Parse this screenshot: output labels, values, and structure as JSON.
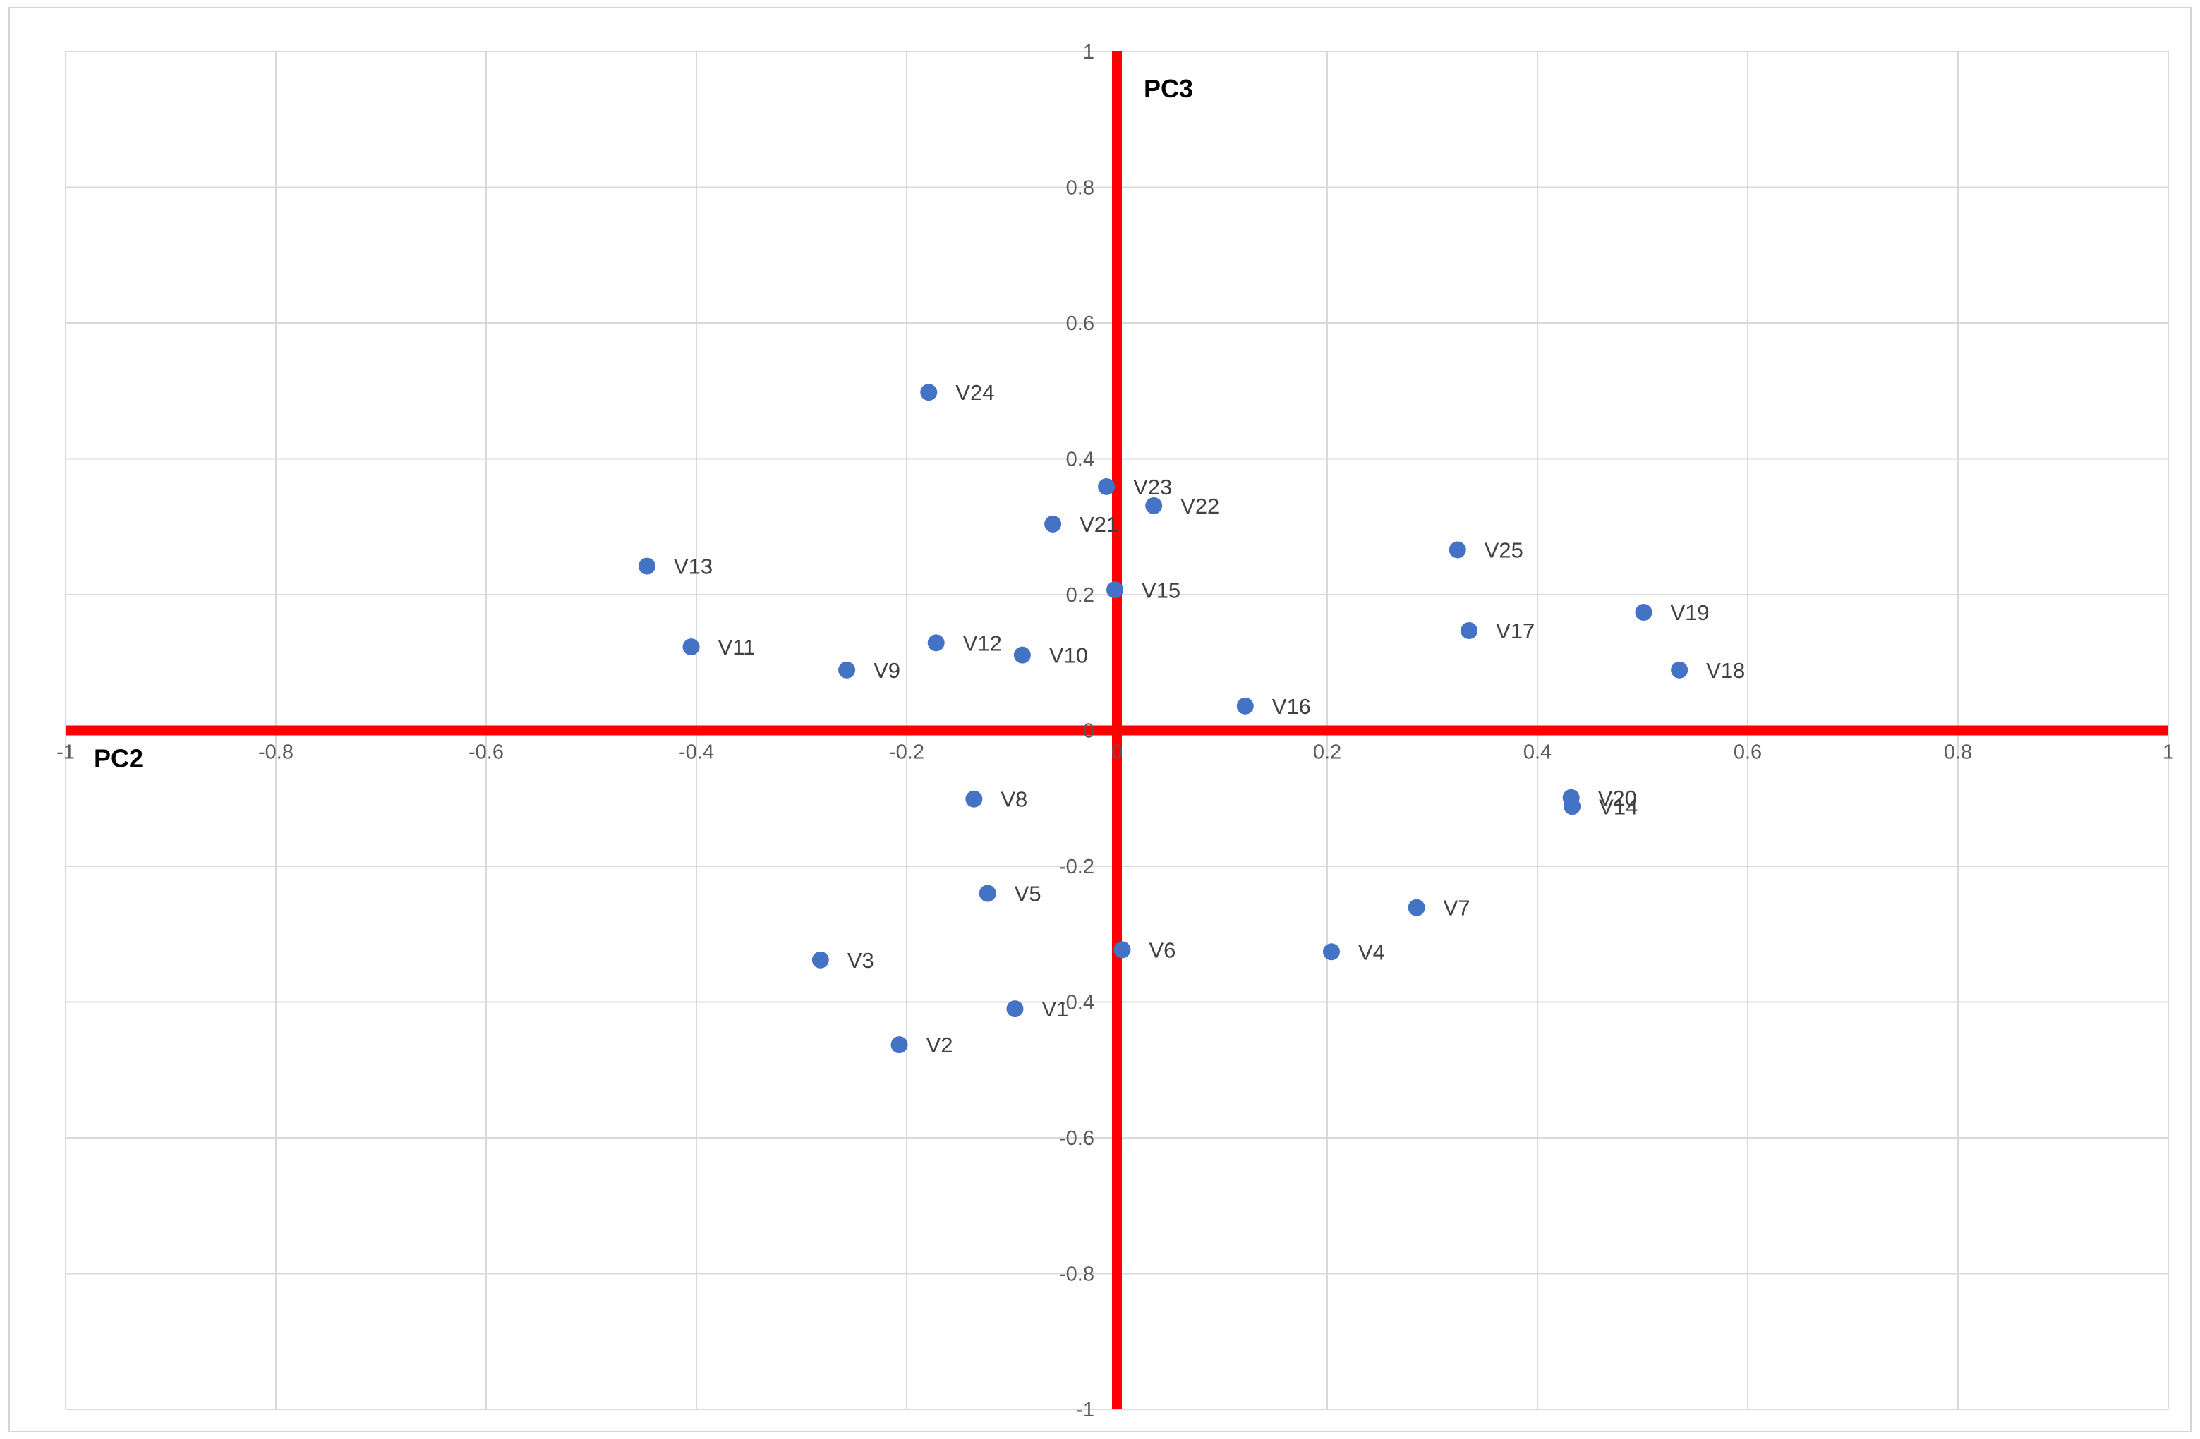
{
  "chart_data": {
    "type": "scatter",
    "title": "",
    "xlabel": "PC2",
    "ylabel": "PC3",
    "xlim": [
      -1,
      1
    ],
    "ylim": [
      -1,
      1
    ],
    "grid": true,
    "x_ticks": [
      "-1",
      "-0.8",
      "-0.6",
      "-0.4",
      "-0.2",
      "0",
      "0.2",
      "0.4",
      "0.6",
      "0.8",
      "1"
    ],
    "y_ticks": [
      "1",
      "0.8",
      "0.6",
      "0.4",
      "0.2",
      "0",
      "-0.2",
      "-0.4",
      "-0.6",
      "-0.8",
      "-1"
    ],
    "colors": {
      "points": "#4472c4",
      "axes": "#ff0000",
      "grid": "#d9d9d9"
    },
    "points": [
      {
        "label": "V1",
        "x": -0.097,
        "y": -0.41
      },
      {
        "label": "V2",
        "x": -0.207,
        "y": -0.463
      },
      {
        "label": "V3",
        "x": -0.282,
        "y": -0.338
      },
      {
        "label": "V4",
        "x": 0.204,
        "y": -0.326
      },
      {
        "label": "V5",
        "x": -0.123,
        "y": -0.24
      },
      {
        "label": "V6",
        "x": 0.005,
        "y": -0.323
      },
      {
        "label": "V7",
        "x": 0.285,
        "y": -0.261
      },
      {
        "label": "V8",
        "x": -0.136,
        "y": -0.101
      },
      {
        "label": "V9",
        "x": -0.257,
        "y": 0.089
      },
      {
        "label": "V10",
        "x": -0.09,
        "y": 0.111
      },
      {
        "label": "V11",
        "x": -0.405,
        "y": 0.123
      },
      {
        "label": "V12",
        "x": -0.172,
        "y": 0.129
      },
      {
        "label": "V13",
        "x": -0.447,
        "y": 0.242
      },
      {
        "label": "V14",
        "x": 0.433,
        "y": -0.112
      },
      {
        "label": "V15",
        "x": -0.002,
        "y": 0.207
      },
      {
        "label": "V16",
        "x": 0.122,
        "y": 0.036
      },
      {
        "label": "V17",
        "x": 0.335,
        "y": 0.147
      },
      {
        "label": "V18",
        "x": 0.535,
        "y": 0.089
      },
      {
        "label": "V19",
        "x": 0.501,
        "y": 0.174
      },
      {
        "label": "V20",
        "x": 0.432,
        "y": -0.099
      },
      {
        "label": "V21",
        "x": -0.061,
        "y": 0.304
      },
      {
        "label": "V22",
        "x": 0.035,
        "y": 0.331
      },
      {
        "label": "V23",
        "x": -0.01,
        "y": 0.359
      },
      {
        "label": "V24",
        "x": -0.179,
        "y": 0.498
      },
      {
        "label": "V25",
        "x": 0.324,
        "y": 0.266
      }
    ]
  }
}
